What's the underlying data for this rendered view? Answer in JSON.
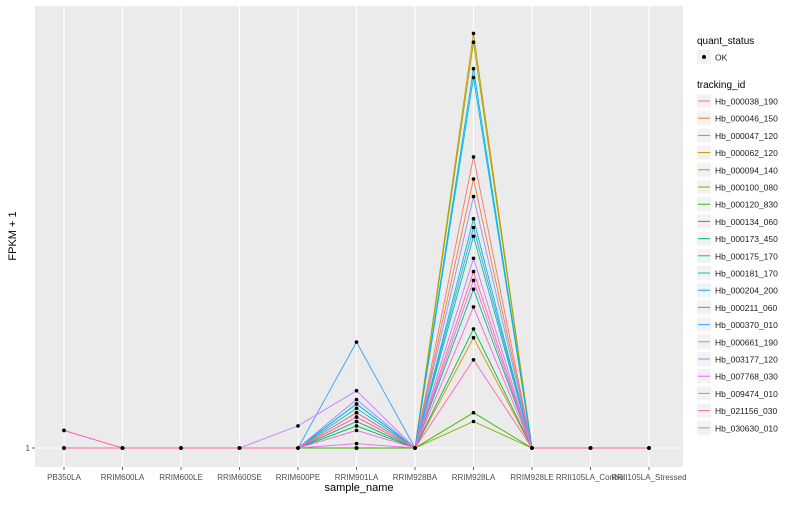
{
  "chart_data": {
    "type": "line",
    "xlabel": "sample_name",
    "ylabel": "FPKM + 1",
    "y_tick_labels": [
      "1"
    ],
    "categories": [
      "PB350LA",
      "RRIM600LA",
      "RRIM600LE",
      "RRIM600SE",
      "RRIM600PE",
      "RRIM901LA",
      "RRIM928BA",
      "RRIM928LA",
      "RRIM928LE",
      "RRII105LA_Control",
      "RRII105LA_Stressed"
    ],
    "ylim": [
      0.95,
      2.0
    ],
    "legend_quant_title": "quant_status",
    "legend_quant_label": "OK",
    "legend_tracking_title": "tracking_id",
    "series": [
      {
        "name": "Hb_000038_190",
        "color": "#F8766D",
        "values": [
          1.04,
          1,
          1,
          1,
          1,
          1.07,
          1,
          1.66,
          1,
          1,
          1
        ]
      },
      {
        "name": "Hb_000046_150",
        "color": "#EA8331",
        "values": [
          1,
          1,
          1,
          1,
          1,
          1.06,
          1,
          1.61,
          1,
          1,
          1
        ]
      },
      {
        "name": "Hb_000047_120",
        "color": "#D89000",
        "values": [
          1,
          1,
          1,
          1,
          1,
          1,
          1,
          1.25,
          1,
          1,
          1
        ]
      },
      {
        "name": "Hb_000062_120",
        "color": "#C09B00",
        "values": [
          1,
          1,
          1,
          1,
          1,
          1,
          1,
          1.94,
          1,
          1,
          1
        ]
      },
      {
        "name": "Hb_000094_140",
        "color": "#A3A500",
        "values": [
          1,
          1,
          1,
          1,
          1,
          1,
          1,
          1.92,
          1,
          1,
          1
        ]
      },
      {
        "name": "Hb_000100_080",
        "color": "#7CAE00",
        "values": [
          1,
          1,
          1,
          1,
          1,
          1,
          1,
          1.06,
          1,
          1,
          1
        ]
      },
      {
        "name": "Hb_000120_830",
        "color": "#39B600",
        "values": [
          1,
          1,
          1,
          1,
          1,
          1,
          1,
          1.08,
          1,
          1,
          1
        ]
      },
      {
        "name": "Hb_000134_060",
        "color": "#00BB4E",
        "values": [
          1,
          1,
          1,
          1,
          1,
          1.05,
          1,
          1.27,
          1,
          1,
          1
        ]
      },
      {
        "name": "Hb_000173_450",
        "color": "#00BF7D",
        "values": [
          1,
          1,
          1,
          1,
          1,
          1.06,
          1,
          1.36,
          1,
          1,
          1
        ]
      },
      {
        "name": "Hb_000175_170",
        "color": "#00C1A3",
        "values": [
          1,
          1,
          1,
          1,
          1,
          1.08,
          1,
          1.48,
          1,
          1,
          1
        ]
      },
      {
        "name": "Hb_000181_170",
        "color": "#00BFC4",
        "values": [
          1,
          1,
          1,
          1,
          1,
          1.09,
          1,
          1.52,
          1,
          1,
          1
        ]
      },
      {
        "name": "Hb_000204_200",
        "color": "#00BAE0",
        "values": [
          1,
          1,
          1,
          1,
          1,
          1.1,
          1,
          1.84,
          1,
          1,
          1
        ]
      },
      {
        "name": "Hb_000211_060",
        "color": "#00B0F6",
        "values": [
          1,
          1,
          1,
          1,
          1,
          1.1,
          1,
          1.86,
          1,
          1,
          1
        ]
      },
      {
        "name": "Hb_000370_010",
        "color": "#35A2FF",
        "values": [
          1,
          1,
          1,
          1,
          1,
          1.24,
          1,
          1.5,
          1,
          1,
          1
        ]
      },
      {
        "name": "Hb_000661_190",
        "color": "#9590FF",
        "values": [
          1,
          1,
          1,
          1,
          1,
          1.11,
          1,
          1.57,
          1,
          1,
          1
        ]
      },
      {
        "name": "Hb_003177_120",
        "color": "#C77CFF",
        "values": [
          1,
          1,
          1,
          1,
          1.05,
          1.13,
          1,
          1.43,
          1,
          1,
          1
        ]
      },
      {
        "name": "Hb_007768_030",
        "color": "#E76BF3",
        "values": [
          1,
          1,
          1,
          1,
          1,
          1.01,
          1,
          1.38,
          1,
          1,
          1
        ]
      },
      {
        "name": "Hb_009474_010",
        "color": "#FA62DB",
        "values": [
          1,
          1,
          1,
          1,
          1,
          1.04,
          1,
          1.32,
          1,
          1,
          1
        ]
      },
      {
        "name": "Hb_021156_030",
        "color": "#FF62BC",
        "values": [
          1.04,
          1,
          1,
          1,
          1,
          1.07,
          1,
          1.2,
          1,
          1,
          1
        ]
      },
      {
        "name": "Hb_030630_010",
        "color": "#FF6C91",
        "values": [
          1,
          1,
          1,
          1,
          1,
          1.08,
          1,
          1.4,
          1,
          1,
          1
        ]
      }
    ]
  }
}
